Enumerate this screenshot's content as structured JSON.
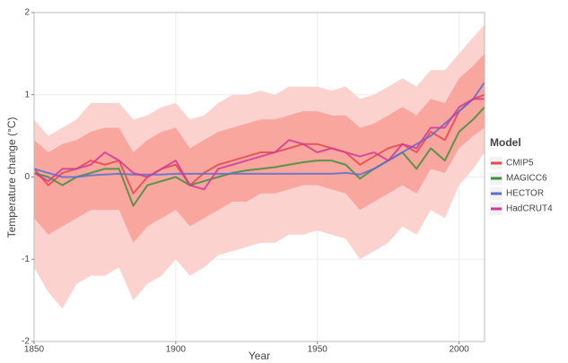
{
  "chart_data": {
    "type": "line",
    "x_label": "Year",
    "y_label": "Temperature change (°C)",
    "legend_title": "Model",
    "legend_position": "right",
    "grid": true,
    "xlim": [
      1850,
      2009
    ],
    "xticks": [
      1850,
      1900,
      1950,
      2000
    ],
    "ylim": [
      -2,
      2
    ],
    "yticks": [
      -2,
      -1,
      0,
      1,
      2
    ],
    "x": [
      1850,
      1855,
      1860,
      1865,
      1870,
      1875,
      1880,
      1885,
      1890,
      1895,
      1900,
      1905,
      1910,
      1915,
      1920,
      1925,
      1930,
      1935,
      1940,
      1945,
      1950,
      1955,
      1960,
      1965,
      1970,
      1975,
      1980,
      1985,
      1990,
      1995,
      2000,
      2005,
      2009
    ],
    "bands": [
      {
        "color": "#fcd2ce",
        "upper": [
          0.7,
          0.5,
          0.6,
          0.7,
          0.9,
          0.9,
          0.9,
          0.7,
          0.75,
          0.85,
          0.9,
          0.7,
          0.75,
          0.9,
          1.0,
          1.0,
          1.05,
          1.0,
          1.1,
          1.1,
          1.1,
          1.05,
          1.1,
          0.95,
          1.0,
          1.1,
          1.2,
          1.1,
          1.3,
          1.3,
          1.5,
          1.7,
          1.85
        ],
        "lower": [
          -1.1,
          -1.4,
          -1.6,
          -1.3,
          -1.2,
          -1.2,
          -1.1,
          -1.5,
          -1.3,
          -1.2,
          -1.0,
          -1.2,
          -1.1,
          -0.95,
          -0.9,
          -0.85,
          -0.8,
          -0.8,
          -0.7,
          -0.7,
          -0.65,
          -0.7,
          -0.75,
          -1.0,
          -0.9,
          -0.8,
          -0.6,
          -0.7,
          -0.4,
          -0.5,
          -0.1,
          0.1,
          0.3
        ]
      },
      {
        "color": "#f8a69e",
        "upper": [
          0.45,
          0.3,
          0.4,
          0.45,
          0.55,
          0.6,
          0.6,
          0.3,
          0.45,
          0.55,
          0.6,
          0.35,
          0.45,
          0.55,
          0.6,
          0.65,
          0.7,
          0.7,
          0.75,
          0.8,
          0.8,
          0.75,
          0.75,
          0.6,
          0.65,
          0.75,
          0.85,
          0.75,
          0.95,
          0.9,
          1.2,
          1.35,
          1.5
        ],
        "lower": [
          -0.5,
          -0.7,
          -0.6,
          -0.5,
          -0.4,
          -0.4,
          -0.4,
          -0.8,
          -0.6,
          -0.5,
          -0.4,
          -0.6,
          -0.5,
          -0.4,
          -0.3,
          -0.3,
          -0.2,
          -0.2,
          -0.15,
          -0.1,
          -0.1,
          -0.15,
          -0.2,
          -0.4,
          -0.3,
          -0.2,
          -0.1,
          -0.2,
          0.1,
          0.05,
          0.35,
          0.5,
          0.6
        ]
      }
    ],
    "series": [
      {
        "name": "CMIP5",
        "color": "#e8474c",
        "values": [
          0.1,
          -0.1,
          0.05,
          0.1,
          0.2,
          0.15,
          0.2,
          -0.2,
          0.0,
          0.1,
          0.15,
          -0.1,
          0.05,
          0.15,
          0.2,
          0.25,
          0.3,
          0.3,
          0.35,
          0.4,
          0.4,
          0.35,
          0.3,
          0.15,
          0.25,
          0.35,
          0.4,
          0.3,
          0.55,
          0.45,
          0.8,
          0.95,
          1.0
        ]
      },
      {
        "name": "MAGICC6",
        "color": "#3d8f3d",
        "values": [
          0.05,
          0.0,
          -0.1,
          0.0,
          0.05,
          0.1,
          0.1,
          -0.35,
          -0.1,
          -0.05,
          0.0,
          -0.1,
          -0.05,
          0.0,
          0.05,
          0.08,
          0.1,
          0.12,
          0.15,
          0.18,
          0.2,
          0.2,
          0.15,
          -0.02,
          0.1,
          0.2,
          0.3,
          0.1,
          0.35,
          0.2,
          0.55,
          0.7,
          0.85
        ]
      },
      {
        "name": "HECTOR",
        "color": "#5b6fd0",
        "values": [
          0.1,
          0.05,
          0.0,
          0.0,
          0.02,
          0.03,
          0.04,
          0.03,
          0.03,
          0.03,
          0.04,
          0.04,
          0.04,
          0.04,
          0.04,
          0.04,
          0.04,
          0.04,
          0.04,
          0.04,
          0.04,
          0.04,
          0.05,
          0.03,
          0.1,
          0.2,
          0.3,
          0.4,
          0.5,
          0.65,
          0.8,
          0.95,
          1.15
        ]
      },
      {
        "name": "HadCRUT4",
        "color": "#d03a9a",
        "values": [
          0.05,
          -0.05,
          0.1,
          0.1,
          0.15,
          0.3,
          0.2,
          0.05,
          0.0,
          0.1,
          0.2,
          -0.1,
          -0.15,
          0.1,
          0.15,
          0.2,
          0.25,
          0.3,
          0.45,
          0.4,
          0.3,
          0.35,
          0.3,
          0.25,
          0.3,
          0.2,
          0.4,
          0.35,
          0.6,
          0.6,
          0.85,
          0.95,
          0.95
        ]
      }
    ]
  }
}
